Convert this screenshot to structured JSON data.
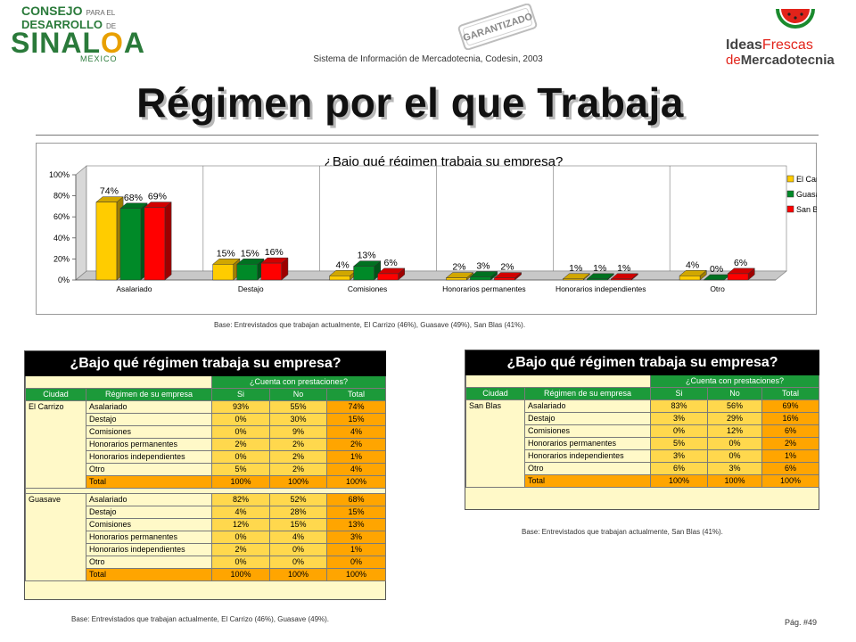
{
  "header": {
    "logo_left": {
      "line1": "CONSEJO",
      "line1_small": "PARA EL",
      "line2": "DESARROLLO",
      "line2_small": "DE",
      "line3a": "SINAL",
      "line3b": "O",
      "line3c": "A",
      "line4": "MEXICO"
    },
    "stamp": {
      "line1": "GARANTIZADO"
    },
    "system_text": "Sistema de Información de Mercadotecnia, Codesin, 2003",
    "logo_right": {
      "b1a": "Ideas",
      "b1b": "Frescas",
      "b2a": "de",
      "b2b": "Mercadotecnia"
    }
  },
  "title": "Régimen por el que Trabaja",
  "chart_data": {
    "type": "bar",
    "title": "¿Bajo qué régimen trabaja su empresa?",
    "categories": [
      "Asalariado",
      "Destajo",
      "Comisiones",
      "Honorarios permanentes",
      "Honorarios independientes",
      "Otro"
    ],
    "series": [
      {
        "name": "El Carrizo",
        "values": [
          74,
          15,
          4,
          2,
          1,
          4
        ],
        "labels": [
          "74%",
          "15%",
          "4%",
          "2%",
          "1%",
          "4%"
        ],
        "color": "#ffcc00"
      },
      {
        "name": "Guasave",
        "values": [
          68,
          15,
          13,
          3,
          1,
          0
        ],
        "labels": [
          "68%",
          "15%",
          "13%",
          "3%",
          "1%",
          "0%"
        ],
        "color": "#008a28"
      },
      {
        "name": "San Blas",
        "values": [
          69,
          16,
          6,
          2,
          1,
          6
        ],
        "labels": [
          "69%",
          "16%",
          "6%",
          "2%",
          "1%",
          "6%"
        ],
        "color": "#ff0000"
      }
    ],
    "y_ticks": [
      "0%",
      "20%",
      "40%",
      "60%",
      "80%",
      "100%"
    ],
    "ylim": [
      0,
      100
    ],
    "legend_position": "right",
    "grid": false,
    "base_note": "Base: Entrevistados que trabajan actualmente, El Carrizo (46%), Guasave (49%), San Blas (41%)."
  },
  "table_left": {
    "title": "¿Bajo qué régimen trabaja su empresa?",
    "group_header": "¿Cuenta con prestaciones?",
    "columns": [
      "Ciudad",
      "Régimen de su empresa",
      "Si",
      "No",
      "Total"
    ],
    "groups": [
      {
        "city": "El Carrizo",
        "rows": [
          [
            "Asalariado",
            "93%",
            "55%",
            "74%"
          ],
          [
            "Destajo",
            "0%",
            "30%",
            "15%"
          ],
          [
            "Comisiones",
            "0%",
            "9%",
            "4%"
          ],
          [
            "Honorarios permanentes",
            "2%",
            "2%",
            "2%"
          ],
          [
            "Honorarios independientes",
            "0%",
            "2%",
            "1%"
          ],
          [
            "Otro",
            "5%",
            "2%",
            "4%"
          ],
          [
            "Total",
            "100%",
            "100%",
            "100%"
          ]
        ]
      },
      {
        "city": "Guasave",
        "rows": [
          [
            "Asalariado",
            "82%",
            "52%",
            "68%"
          ],
          [
            "Destajo",
            "4%",
            "28%",
            "15%"
          ],
          [
            "Comisiones",
            "12%",
            "15%",
            "13%"
          ],
          [
            "Honorarios permanentes",
            "0%",
            "4%",
            "3%"
          ],
          [
            "Honorarios independientes",
            "2%",
            "0%",
            "1%"
          ],
          [
            "Otro",
            "0%",
            "0%",
            "0%"
          ],
          [
            "Total",
            "100%",
            "100%",
            "100%"
          ]
        ]
      }
    ],
    "base_note": "Base: Entrevistados que trabajan actualmente, El Carrizo (46%), Guasave (49%)."
  },
  "table_right": {
    "title": "¿Bajo qué régimen trabaja su empresa?",
    "group_header": "¿Cuenta con prestaciones?",
    "columns": [
      "Ciudad",
      "Régimen de su empresa",
      "Si",
      "No",
      "Total"
    ],
    "groups": [
      {
        "city": "San Blas",
        "rows": [
          [
            "Asalariado",
            "83%",
            "56%",
            "69%"
          ],
          [
            "Destajo",
            "3%",
            "29%",
            "16%"
          ],
          [
            "Comisiones",
            "0%",
            "12%",
            "6%"
          ],
          [
            "Honorarios permanentes",
            "5%",
            "0%",
            "2%"
          ],
          [
            "Honorarios independientes",
            "3%",
            "0%",
            "1%"
          ],
          [
            "Otro",
            "6%",
            "3%",
            "6%"
          ],
          [
            "Total",
            "100%",
            "100%",
            "100%"
          ]
        ]
      }
    ],
    "base_note": "Base: Entrevistados que trabajan actualmente, San Blas (41%)."
  },
  "page_number": "Pág. #49"
}
